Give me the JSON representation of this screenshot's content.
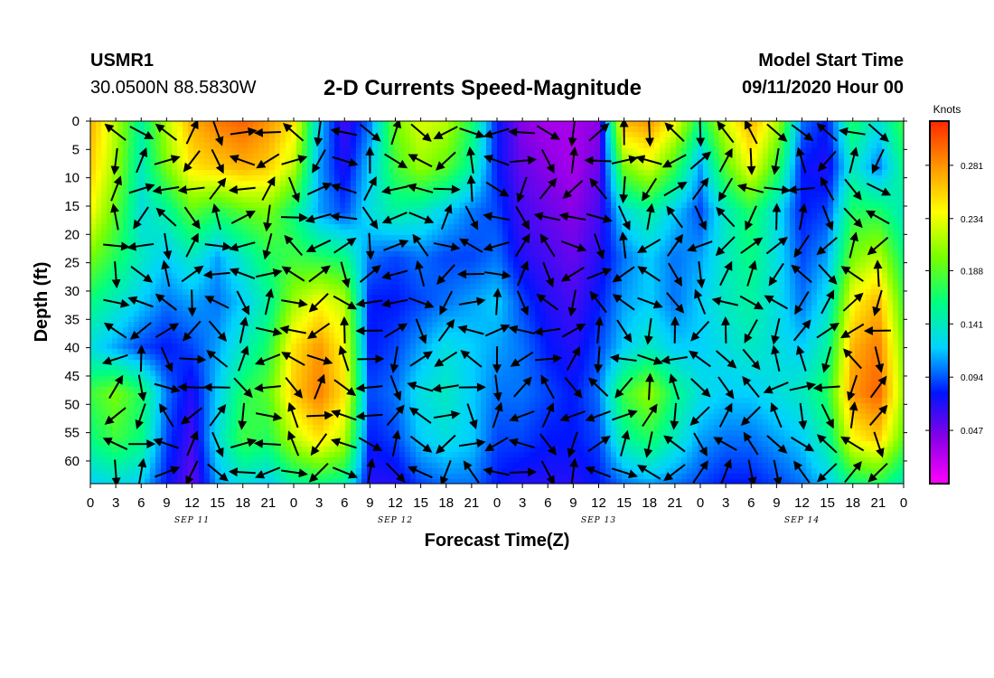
{
  "header": {
    "station": "USMR1",
    "coords": "30.0500N 88.5830W",
    "title": "2-D Currents Speed-Magnitude",
    "model_start_label": "Model Start Time",
    "model_start_value": "09/11/2020 Hour 00"
  },
  "chart_data": {
    "type": "heatmap",
    "title": "2-D Currents Speed-Magnitude",
    "xlabel": "Forecast Time(Z)",
    "ylabel": "Depth (ft)",
    "x_tick_labels": [
      "0",
      "3",
      "6",
      "9",
      "12",
      "15",
      "18",
      "21",
      "0",
      "3",
      "6",
      "9",
      "12",
      "15",
      "18",
      "21",
      "0",
      "3",
      "6",
      "9",
      "12",
      "15",
      "18",
      "21",
      "0",
      "3",
      "6",
      "9",
      "12",
      "15",
      "18",
      "21",
      "0"
    ],
    "day_labels": [
      "SEP 11",
      "SEP 12",
      "SEP 13",
      "SEP 14"
    ],
    "y_tick_labels": [
      "0",
      "5",
      "10",
      "15",
      "20",
      "25",
      "30",
      "35",
      "40",
      "45",
      "50",
      "55",
      "60"
    ],
    "xlim_hours": [
      0,
      96
    ],
    "ylim_ft": [
      0,
      64
    ],
    "colorbar": {
      "unit": "Knots",
      "tick_labels": [
        "0.281",
        "0.234",
        "0.188",
        "0.141",
        "0.094",
        "0.047"
      ],
      "tick_values": [
        0.281,
        0.234,
        0.188,
        0.141,
        0.094,
        0.047
      ],
      "range": [
        0.0,
        0.32
      ],
      "colors": [
        "#ff00ff",
        "#8a00e6",
        "#0014ff",
        "#00d2ff",
        "#00ff80",
        "#78ff00",
        "#ffff00",
        "#ff9600",
        "#ff2800"
      ]
    },
    "speed_time_hours": [
      0,
      3,
      6,
      9,
      12,
      15,
      18,
      21,
      24,
      27,
      30,
      33,
      36,
      39,
      42,
      45,
      48,
      51,
      54,
      57,
      60,
      63,
      66,
      69,
      72,
      75,
      78,
      81,
      84,
      87,
      90,
      93,
      96
    ],
    "speed_depth_ft": [
      0,
      8,
      16,
      24,
      32,
      40,
      48,
      56,
      64
    ],
    "speed_knots": [
      [
        0.27,
        0.22,
        0.15,
        0.22,
        0.27,
        0.29,
        0.3,
        0.28,
        0.25,
        0.12,
        0.06,
        0.1,
        0.2,
        0.23,
        0.22,
        0.17,
        0.08,
        0.04,
        0.03,
        0.03,
        0.04,
        0.27,
        0.28,
        0.24,
        0.16,
        0.23,
        0.27,
        0.22,
        0.1,
        0.08,
        0.17,
        0.13,
        0.18
      ],
      [
        0.26,
        0.21,
        0.14,
        0.2,
        0.25,
        0.26,
        0.27,
        0.26,
        0.22,
        0.11,
        0.07,
        0.12,
        0.18,
        0.21,
        0.19,
        0.15,
        0.08,
        0.05,
        0.04,
        0.03,
        0.05,
        0.2,
        0.23,
        0.18,
        0.11,
        0.19,
        0.24,
        0.18,
        0.08,
        0.07,
        0.14,
        0.1,
        0.16
      ],
      [
        0.24,
        0.19,
        0.13,
        0.15,
        0.19,
        0.17,
        0.19,
        0.2,
        0.16,
        0.11,
        0.09,
        0.13,
        0.15,
        0.14,
        0.12,
        0.1,
        0.09,
        0.06,
        0.05,
        0.04,
        0.06,
        0.13,
        0.15,
        0.12,
        0.09,
        0.14,
        0.17,
        0.13,
        0.08,
        0.09,
        0.17,
        0.17,
        0.14
      ],
      [
        0.2,
        0.17,
        0.14,
        0.12,
        0.14,
        0.11,
        0.14,
        0.17,
        0.18,
        0.17,
        0.16,
        0.1,
        0.09,
        0.1,
        0.09,
        0.09,
        0.1,
        0.07,
        0.06,
        0.05,
        0.07,
        0.1,
        0.12,
        0.1,
        0.11,
        0.14,
        0.16,
        0.13,
        0.09,
        0.11,
        0.2,
        0.22,
        0.16
      ],
      [
        0.16,
        0.14,
        0.12,
        0.1,
        0.11,
        0.1,
        0.12,
        0.15,
        0.21,
        0.24,
        0.22,
        0.08,
        0.08,
        0.09,
        0.1,
        0.11,
        0.12,
        0.09,
        0.07,
        0.06,
        0.08,
        0.11,
        0.12,
        0.1,
        0.12,
        0.14,
        0.15,
        0.13,
        0.1,
        0.13,
        0.24,
        0.27,
        0.18
      ],
      [
        0.13,
        0.11,
        0.09,
        0.08,
        0.09,
        0.11,
        0.14,
        0.17,
        0.25,
        0.28,
        0.24,
        0.08,
        0.09,
        0.11,
        0.13,
        0.12,
        0.11,
        0.1,
        0.08,
        0.07,
        0.09,
        0.12,
        0.14,
        0.12,
        0.12,
        0.13,
        0.14,
        0.13,
        0.12,
        0.15,
        0.27,
        0.29,
        0.2
      ],
      [
        0.18,
        0.2,
        0.17,
        0.1,
        0.07,
        0.12,
        0.17,
        0.19,
        0.26,
        0.29,
        0.25,
        0.09,
        0.1,
        0.13,
        0.14,
        0.12,
        0.1,
        0.1,
        0.09,
        0.08,
        0.1,
        0.18,
        0.21,
        0.16,
        0.13,
        0.12,
        0.12,
        0.13,
        0.14,
        0.17,
        0.28,
        0.3,
        0.21
      ],
      [
        0.16,
        0.18,
        0.16,
        0.09,
        0.06,
        0.13,
        0.18,
        0.17,
        0.22,
        0.25,
        0.22,
        0.08,
        0.09,
        0.12,
        0.13,
        0.12,
        0.09,
        0.09,
        0.08,
        0.08,
        0.09,
        0.15,
        0.17,
        0.14,
        0.11,
        0.1,
        0.1,
        0.11,
        0.12,
        0.15,
        0.24,
        0.26,
        0.19
      ],
      [
        0.12,
        0.13,
        0.12,
        0.08,
        0.05,
        0.11,
        0.13,
        0.12,
        0.15,
        0.16,
        0.15,
        0.07,
        0.07,
        0.09,
        0.1,
        0.1,
        0.08,
        0.07,
        0.07,
        0.07,
        0.08,
        0.1,
        0.11,
        0.1,
        0.09,
        0.08,
        0.08,
        0.09,
        0.1,
        0.12,
        0.16,
        0.17,
        0.14
      ]
    ],
    "vectors_note": "Current direction arrows overlaid on the speed field"
  }
}
